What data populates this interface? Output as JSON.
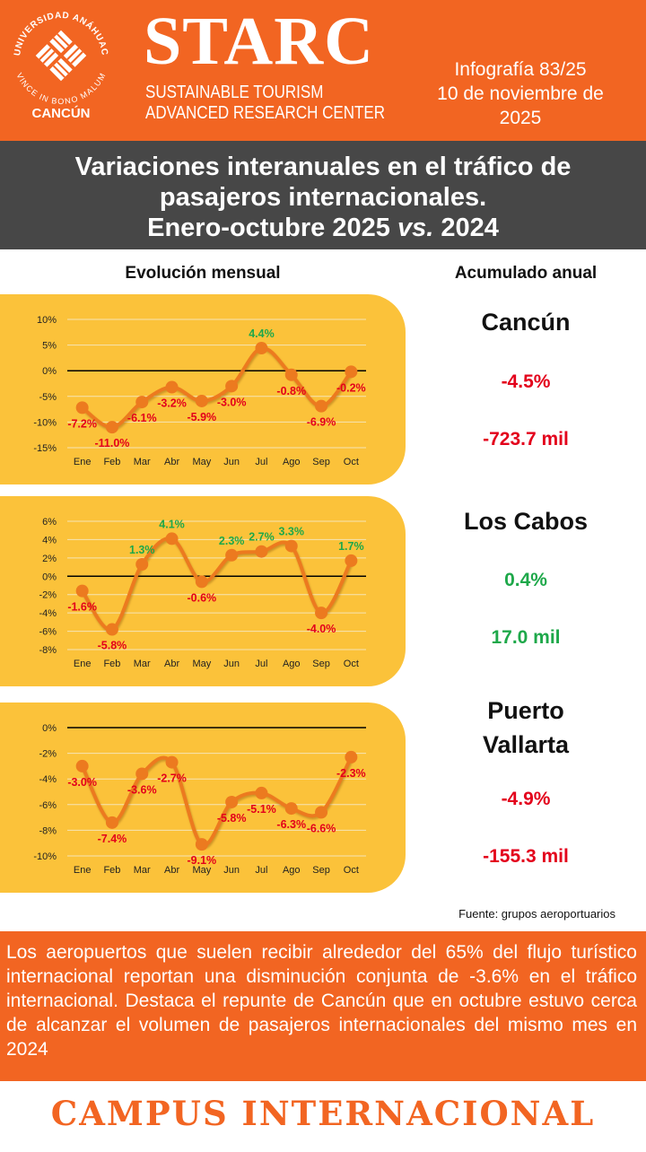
{
  "header": {
    "university": "UNIVERSIDAD ANÁHUAC",
    "motto": "VINCE IN BONO MALUM",
    "campus": "CANCÚN",
    "brand": "STARC",
    "brand_line1": "SUSTAINABLE TOURISM",
    "brand_line2": "ADVANCED RESEARCH CENTER",
    "issue": "Infografía 83/25",
    "date": "10 de noviembre de 2025"
  },
  "title": {
    "line1": "Variaciones interanuales en el tráfico de",
    "line2": "pasajeros internacionales.",
    "line3_start": "Enero-octubre 2025",
    "line3_vs": "vs.",
    "line3_end": "2024"
  },
  "column_headers": [
    "Evolución mensual",
    "Acumulado anual"
  ],
  "chart_data": [
    {
      "type": "line",
      "categories": [
        "Ene",
        "Feb",
        "Mar",
        "Abr",
        "May",
        "Jun",
        "Jul",
        "Ago",
        "Sep",
        "Oct"
      ],
      "values": [
        -7.2,
        -11.0,
        -6.1,
        -3.2,
        -5.9,
        -3.0,
        4.4,
        -0.8,
        -6.9,
        -0.2
      ],
      "value_labels": [
        "-7.2%",
        "-11.0%",
        "-6.1%",
        "-3.2%",
        "-5.9%",
        "-3.0%",
        "4.4%",
        "-0.8%",
        "-6.9%",
        "-0.2%"
      ],
      "color": "#ec7a1f",
      "label_colors": {
        "negative": "#e3001b",
        "positive": "#1ea84a"
      },
      "ylim": [
        -15,
        10
      ],
      "yticks": [
        {
          "value": -15,
          "label": "-15%"
        },
        {
          "value": -10,
          "label": "-10%"
        },
        {
          "value": -5,
          "label": "-5%"
        },
        {
          "value": 0,
          "label": "0%"
        },
        {
          "value": 5,
          "label": "5%"
        },
        {
          "value": 10,
          "label": "10%"
        }
      ],
      "grid": true
    },
    {
      "type": "line",
      "categories": [
        "Ene",
        "Feb",
        "Mar",
        "Abr",
        "May",
        "Jun",
        "Jul",
        "Ago",
        "Sep",
        "Oct"
      ],
      "values": [
        -1.6,
        -5.8,
        1.3,
        4.1,
        -0.6,
        2.3,
        2.7,
        3.3,
        -4.0,
        1.7
      ],
      "value_labels": [
        "-1.6%",
        "-5.8%",
        "1.3%",
        "4.1%",
        "-0.6%",
        "2.3%",
        "2.7%",
        "3.3%",
        "-4.0%",
        "1.7%"
      ],
      "color": "#ec7a1f",
      "label_colors": {
        "negative": "#e3001b",
        "positive": "#1ea84a"
      },
      "ylim": [
        -8,
        6
      ],
      "yticks": [
        {
          "value": -8,
          "label": "-8%"
        },
        {
          "value": -6,
          "label": "-6%"
        },
        {
          "value": -4,
          "label": "-4%"
        },
        {
          "value": -2,
          "label": "-2%"
        },
        {
          "value": 0,
          "label": "0%"
        },
        {
          "value": 2,
          "label": "2%"
        },
        {
          "value": 4,
          "label": "4%"
        },
        {
          "value": 6,
          "label": "6%"
        }
      ],
      "grid": true
    },
    {
      "type": "line",
      "categories": [
        "Ene",
        "Feb",
        "Mar",
        "Abr",
        "May",
        "Jun",
        "Jul",
        "Ago",
        "Sep",
        "Oct"
      ],
      "values": [
        -3.0,
        -7.4,
        -3.6,
        -2.7,
        -9.1,
        -5.8,
        -5.1,
        -6.3,
        -6.6,
        -2.3
      ],
      "value_labels": [
        "-3.0%",
        "-7.4%",
        "-3.6%",
        "-2.7%",
        "-9.1%",
        "-5.8%",
        "-5.1%",
        "-6.3%",
        "-6.6%",
        "-2.3%"
      ],
      "color": "#ec7a1f",
      "label_colors": {
        "negative": "#e3001b",
        "positive": "#1ea84a"
      },
      "ylim": [
        -10,
        0
      ],
      "yticks": [
        {
          "value": -10,
          "label": "-10%"
        },
        {
          "value": -8,
          "label": "-8%"
        },
        {
          "value": -6,
          "label": "-6%"
        },
        {
          "value": -4,
          "label": "-4%"
        },
        {
          "value": -2,
          "label": "-2%"
        },
        {
          "value": 0,
          "label": "0%"
        }
      ],
      "grid": true
    }
  ],
  "summaries": [
    {
      "city": "Cancún",
      "change": "-4.5%",
      "volume": "-723.7 mil",
      "color": "#e3001b"
    },
    {
      "city": "Los Cabos",
      "change": "0.4%",
      "volume": "17.0  mil",
      "color": "#1ea84a"
    },
    {
      "city": "Puerto Vallarta",
      "change": "-4.9%",
      "volume": "-155.3 mil",
      "color": "#e3001b"
    }
  ],
  "source": "Fuente: grupos aeroportuarios",
  "paragraph": "Los aeropuertos que suelen recibir alrededor del 65% del flujo turístico internacional reportan una disminución conjunta de -3.6% en el tráfico internacional. Destaca el repunte de Cancún que en octubre estuvo cerca de alcanzar el  volumen de pasajeros internacionales del mismo mes en 2024",
  "footer": "CAMPUS INTERNACIONAL"
}
